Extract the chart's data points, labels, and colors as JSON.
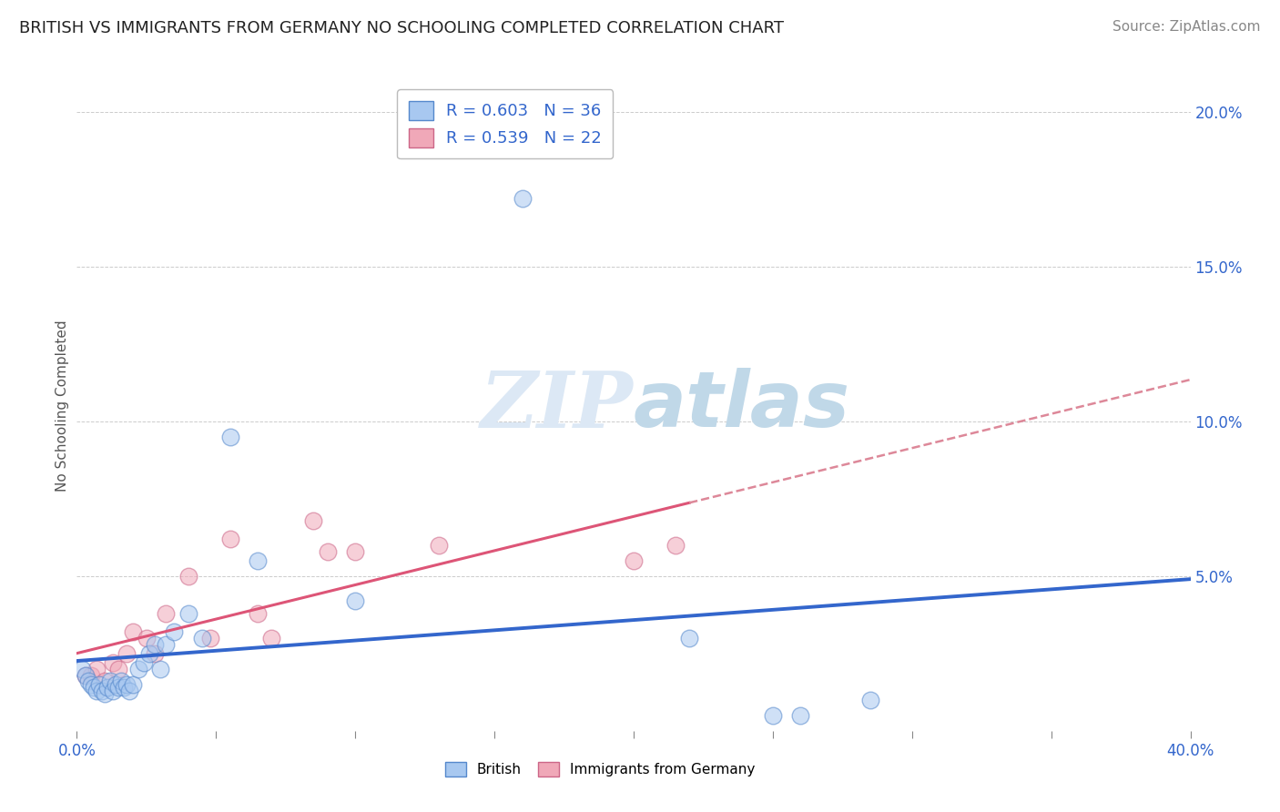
{
  "title": "BRITISH VS IMMIGRANTS FROM GERMANY NO SCHOOLING COMPLETED CORRELATION CHART",
  "source": "Source: ZipAtlas.com",
  "ylabel": "No Schooling Completed",
  "bg_color": "#ffffff",
  "grid_color": "#cccccc",
  "xlim": [
    0.0,
    0.4
  ],
  "ylim": [
    0.0,
    0.21
  ],
  "british_x": [
    0.002,
    0.003,
    0.004,
    0.005,
    0.006,
    0.007,
    0.008,
    0.009,
    0.01,
    0.011,
    0.012,
    0.013,
    0.014,
    0.015,
    0.016,
    0.017,
    0.018,
    0.019,
    0.02,
    0.022,
    0.024,
    0.026,
    0.028,
    0.03,
    0.032,
    0.035,
    0.04,
    0.045,
    0.055,
    0.065,
    0.1,
    0.16,
    0.22,
    0.25,
    0.26,
    0.285
  ],
  "british_y": [
    0.02,
    0.018,
    0.016,
    0.015,
    0.014,
    0.013,
    0.015,
    0.013,
    0.012,
    0.014,
    0.016,
    0.013,
    0.015,
    0.014,
    0.016,
    0.014,
    0.015,
    0.013,
    0.015,
    0.02,
    0.022,
    0.025,
    0.028,
    0.02,
    0.028,
    0.032,
    0.038,
    0.03,
    0.095,
    0.055,
    0.042,
    0.172,
    0.03,
    0.005,
    0.005,
    0.01
  ],
  "german_x": [
    0.003,
    0.005,
    0.007,
    0.01,
    0.013,
    0.015,
    0.018,
    0.02,
    0.025,
    0.028,
    0.032,
    0.04,
    0.048,
    0.055,
    0.065,
    0.07,
    0.085,
    0.09,
    0.1,
    0.13,
    0.2,
    0.215
  ],
  "german_y": [
    0.018,
    0.018,
    0.02,
    0.016,
    0.022,
    0.02,
    0.025,
    0.032,
    0.03,
    0.025,
    0.038,
    0.05,
    0.03,
    0.062,
    0.038,
    0.03,
    0.068,
    0.058,
    0.058,
    0.06,
    0.055,
    0.06
  ],
  "british_color": "#a8c8f0",
  "british_edge": "#5588cc",
  "german_color": "#f0a8b8",
  "german_edge": "#cc6688",
  "british_line_color": "#3366cc",
  "german_line_color": "#dd5577",
  "german_dashed_color": "#dd8899",
  "R_british": 0.603,
  "N_british": 36,
  "R_german": 0.539,
  "N_german": 22,
  "watermark_color": "#dce8f5",
  "title_fontsize": 13,
  "label_fontsize": 11,
  "tick_fontsize": 12,
  "legend_fontsize": 13,
  "source_fontsize": 11,
  "bubble_size": 180,
  "bubble_alpha": 0.55
}
